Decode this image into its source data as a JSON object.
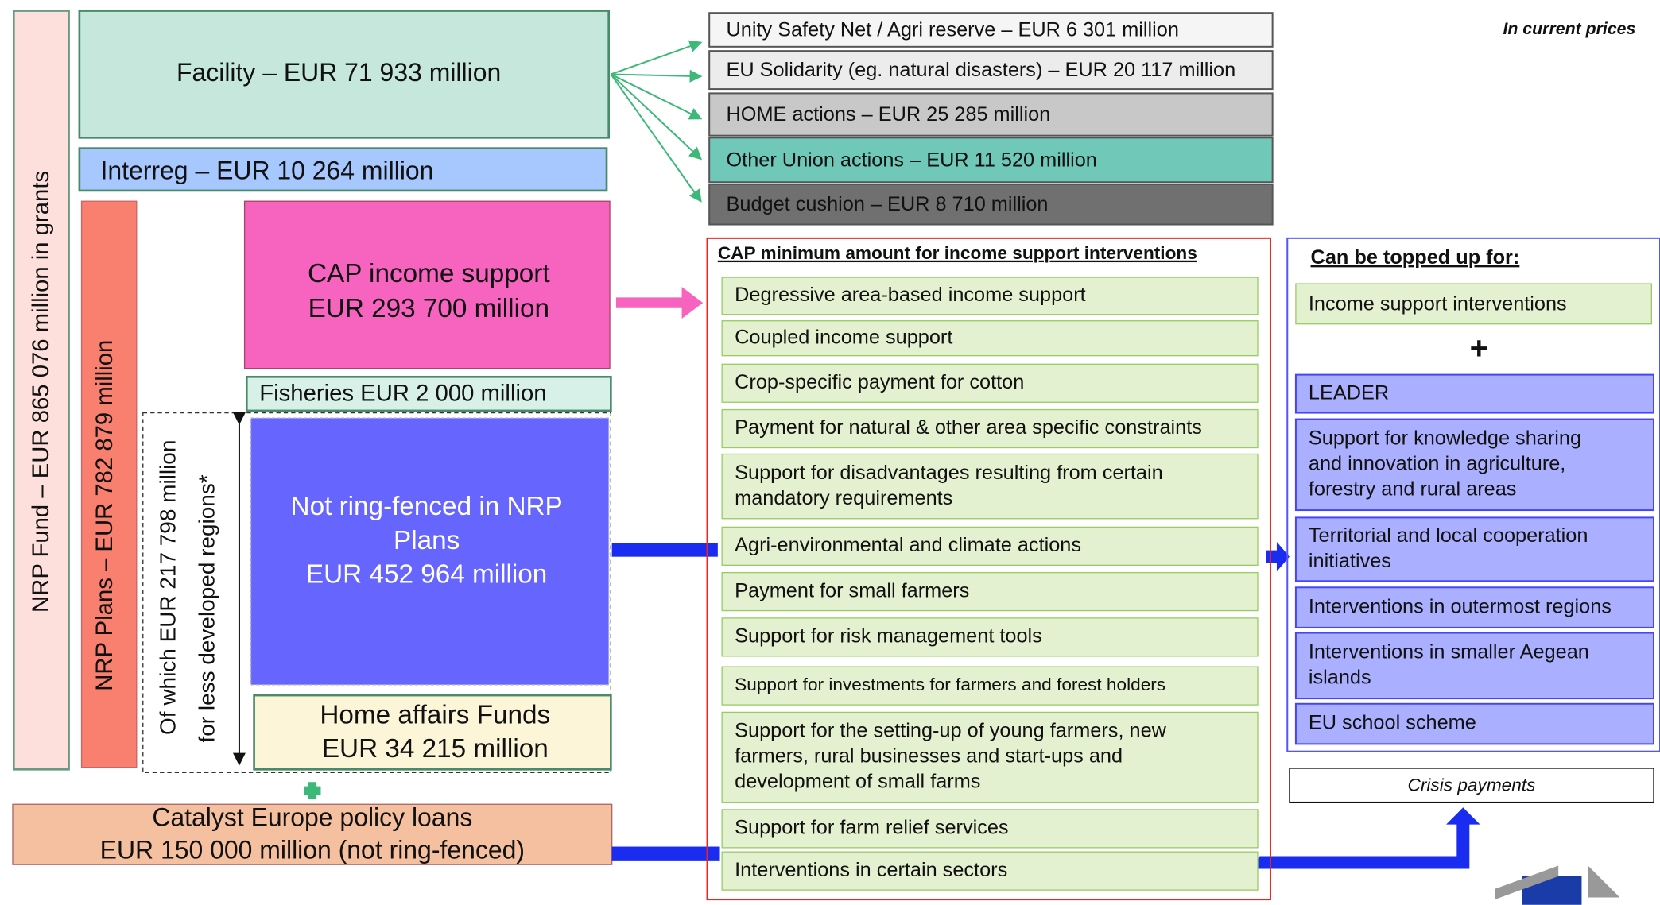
{
  "note": "In current prices",
  "nrp_fund": "NRP Fund  – EUR 865 076 million in grants",
  "nrp_plans": "NRP Plans – EUR 782 879 million",
  "less_developed": [
    "Of which EUR 217 798 million",
    "for less developed regions*"
  ],
  "facility": "Facility  – EUR 71 933 million",
  "interreg": "Interreg – EUR 10 264 million",
  "cap_income": [
    "CAP income support",
    "EUR 293 700 million"
  ],
  "fisheries": "Fisheries EUR 2 000 million",
  "not_ring_fenced": [
    "Not ring-fenced in NRP",
    "Plans",
    "EUR 452 964 million"
  ],
  "home_affairs": [
    "Home affairs Funds",
    "EUR 34 215 million"
  ],
  "catalyst": [
    "Catalyst Europe policy loans",
    "EUR 150 000 million (not ring-fenced)"
  ],
  "reserves": [
    "Unity Safety Net / Agri reserve – EUR 6 301 million",
    "EU Solidarity (eg. natural disasters) – EUR 20 117 million",
    "HOME actions – EUR 25 285 million",
    "Other Union actions – EUR 11 520  million",
    "Budget cushion – EUR 8 710 million"
  ],
  "cap_minimum": {
    "title": "CAP minimum amount for income support interventions",
    "items": [
      [
        "Degressive area-based income support"
      ],
      [
        "Coupled income support"
      ],
      [
        "Crop-specific payment for cotton"
      ],
      [
        "Payment for natural & other area specific constraints"
      ],
      [
        "Support for disadvantages resulting from certain",
        "mandatory requirements"
      ],
      [
        "Agri-environmental and climate actions"
      ],
      [
        "Payment for small farmers"
      ],
      [
        "Support for risk management tools"
      ],
      [
        "Support for investments for farmers and forest holders"
      ],
      [
        "Support for the setting-up of young farmers, new",
        "farmers, rural businesses and start-ups and",
        "development of small farms"
      ],
      [
        "Support for farm relief services"
      ],
      [
        "Interventions in certain sectors"
      ]
    ]
  },
  "topped_up": {
    "title": "Can be topped up for:",
    "income": "Income support interventions",
    "plus": "+",
    "items": [
      [
        "LEADER"
      ],
      [
        "Support for knowledge sharing",
        "and innovation in agriculture,",
        "forestry and rural areas"
      ],
      [
        "Territorial and local cooperation",
        "initiatives"
      ],
      [
        "Interventions in outermost regions"
      ],
      [
        "Interventions in smaller Aegean",
        "islands"
      ],
      [
        "EU school scheme"
      ]
    ]
  },
  "crisis": "Crisis payments"
}
